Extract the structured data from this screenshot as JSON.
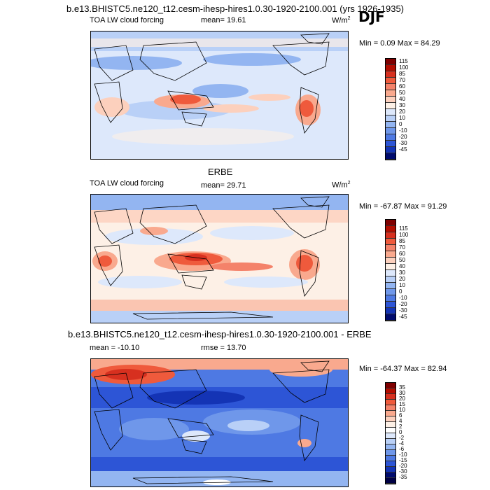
{
  "figure": {
    "title": "b.e13.BHISTC5.ne120_t12.cesm-ihesp-hires1.0.30-1920-2100.001 (yrs 1926-1935)",
    "season": "DJF"
  },
  "panels": [
    {
      "variable": "TOA LW cloud forcing",
      "mean_text": "mean=  19.61",
      "units_base": "W/m",
      "units_exp": "2",
      "minmax": "Min =   0.09 Max =  84.29"
    },
    {
      "heading": "ERBE",
      "variable": "TOA LW cloud forcing",
      "mean_text": "mean=  29.71",
      "units_base": "W/m",
      "units_exp": "2",
      "minmax": "Min = -67.87 Max =  91.29"
    },
    {
      "heading": "b.e13.BHISTC5.ne120_t12.cesm-ihesp-hires1.0.30-1920-2100.001 - ERBE",
      "mean_text": "mean = -10.10",
      "rmse_text": "rmse =  13.70",
      "minmax": "Min = -64.37 Max =  82.94"
    }
  ],
  "colorbars": {
    "field": {
      "labels": [
        "115",
        "100",
        "85",
        "70",
        "60",
        "50",
        "40",
        "30",
        "20",
        "10",
        "0",
        "-10",
        "-20",
        "-30",
        "-45"
      ],
      "colors": [
        "#7f0000",
        "#b30d00",
        "#d7301f",
        "#ef5a3c",
        "#f4826a",
        "#f9a98e",
        "#fcd0bd",
        "#fdf0e6",
        "#dde8fb",
        "#b9d0f7",
        "#93b5f1",
        "#6f97ea",
        "#4e79e3",
        "#2d55d6",
        "#1434b5",
        "#000b6e"
      ]
    },
    "diff": {
      "labels": [
        "35",
        "30",
        "20",
        "15",
        "10",
        "6",
        "4",
        "2",
        "0",
        "-2",
        "-4",
        "-6",
        "-10",
        "-15",
        "-20",
        "-30",
        "-35"
      ],
      "colors": [
        "#7f0000",
        "#b30d00",
        "#d7301f",
        "#ef5a3c",
        "#f4826a",
        "#f9a98e",
        "#fcd0bd",
        "#fdf0e6",
        "#ffffff",
        "#dde8fb",
        "#b9d0f7",
        "#93b5f1",
        "#6f97ea",
        "#4e79e3",
        "#2d55d6",
        "#1434b5",
        "#000b6e",
        "#000044"
      ]
    }
  },
  "chart_data": [
    {
      "type": "heatmap",
      "title": "TOA LW cloud forcing",
      "subtitle": "b.e13.BHISTC5.ne120_t12.cesm-ihesp-hires1.0.30-1920-2100.001 (yrs 1926-1935), DJF",
      "units": "W/m2",
      "mean": 19.61,
      "min": 0.09,
      "max": 84.29,
      "contour_levels": [
        -45,
        -30,
        -20,
        -10,
        0,
        10,
        20,
        30,
        40,
        50,
        60,
        70,
        85,
        100,
        115
      ]
    },
    {
      "type": "heatmap",
      "title": "TOA LW cloud forcing",
      "subtitle": "ERBE",
      "units": "W/m2",
      "mean": 29.71,
      "min": -67.87,
      "max": 91.29,
      "contour_levels": [
        -45,
        -30,
        -20,
        -10,
        0,
        10,
        20,
        30,
        40,
        50,
        60,
        70,
        85,
        100,
        115
      ]
    },
    {
      "type": "heatmap",
      "title": "b.e13.BHISTC5.ne120_t12.cesm-ihesp-hires1.0.30-1920-2100.001 - ERBE",
      "mean": -10.1,
      "rmse": 13.7,
      "min": -64.37,
      "max": 82.94,
      "contour_levels": [
        -35,
        -30,
        -20,
        -15,
        -10,
        -6,
        -4,
        -2,
        0,
        2,
        4,
        6,
        10,
        15,
        20,
        30,
        35
      ]
    }
  ]
}
